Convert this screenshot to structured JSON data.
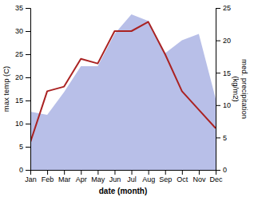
{
  "chart_data": {
    "type": "line",
    "xlabel": "date (month)",
    "ylabel": "max temp (C)",
    "y2label": "med. precipitation\n(kg/m2)",
    "categories": [
      "Jan",
      "Feb",
      "Mar",
      "Apr",
      "May",
      "Jun",
      "Jul",
      "Aug",
      "Sep",
      "Oct",
      "Nov",
      "Dec"
    ],
    "series": [
      {
        "type": "area",
        "axis": "y2",
        "color": "#b8bfe8",
        "values": [
          9,
          8.5,
          12,
          16,
          16,
          21,
          24,
          23,
          18,
          20,
          21,
          11
        ]
      },
      {
        "type": "line",
        "color": "#aa2222",
        "values": [
          6,
          17,
          18,
          24,
          23,
          30,
          30,
          32,
          25,
          17,
          13,
          9
        ]
      }
    ],
    "ylim": [
      0,
      35
    ],
    "yticks": [
      0,
      5,
      10,
      15,
      20,
      25,
      30,
      35
    ],
    "y2lim": [
      0,
      25
    ],
    "y2ticks": [
      0,
      5,
      10,
      15,
      20,
      25
    ],
    "grid": false
  }
}
